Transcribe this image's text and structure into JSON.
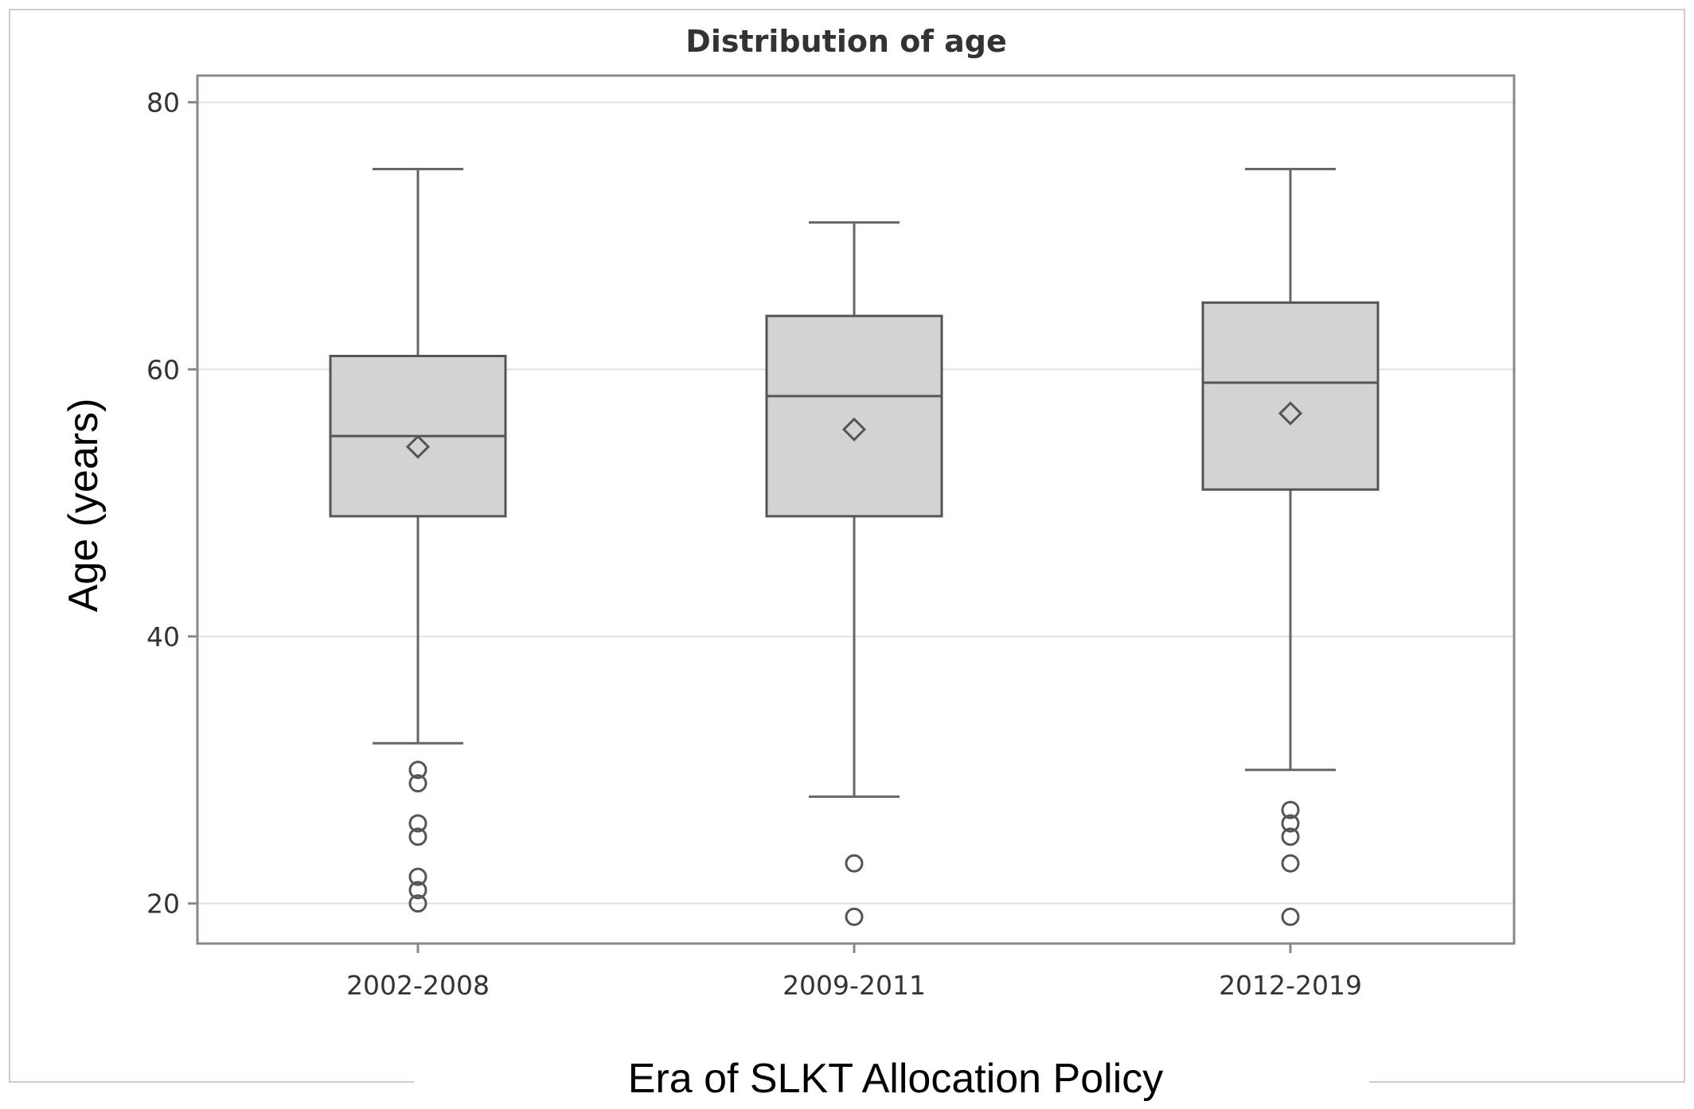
{
  "chart_data": {
    "type": "box",
    "title": "Distribution of age",
    "xlabel": "Era of SLKT Allocation Policy",
    "ylabel": "Age (years)",
    "ylim": [
      17,
      82
    ],
    "yticks": [
      20,
      40,
      60,
      80
    ],
    "grid": true,
    "categories": [
      "2002-2008",
      "2009-2011",
      "2012-2019"
    ],
    "boxes": [
      {
        "category": "2002-2008",
        "whisker_low": 32,
        "q1": 49,
        "median": 55,
        "q3": 61,
        "whisker_high": 75,
        "mean": 54.2,
        "outliers": [
          30,
          29,
          26,
          25,
          22,
          21,
          20
        ]
      },
      {
        "category": "2009-2011",
        "whisker_low": 28,
        "q1": 49,
        "median": 58,
        "q3": 64,
        "whisker_high": 71,
        "mean": 55.5,
        "outliers": [
          23,
          19
        ]
      },
      {
        "category": "2012-2019",
        "whisker_low": 30,
        "q1": 51,
        "median": 59,
        "q3": 65,
        "whisker_high": 75,
        "mean": 56.7,
        "outliers": [
          27,
          26,
          25,
          23,
          19
        ]
      }
    ],
    "colors": {
      "box_fill": "#d3d3d3",
      "box_stroke": "#555555",
      "whisker": "#666666",
      "grid": "#e2e2e2",
      "frame": "#888888",
      "outer_frame": "#cccccc"
    }
  }
}
